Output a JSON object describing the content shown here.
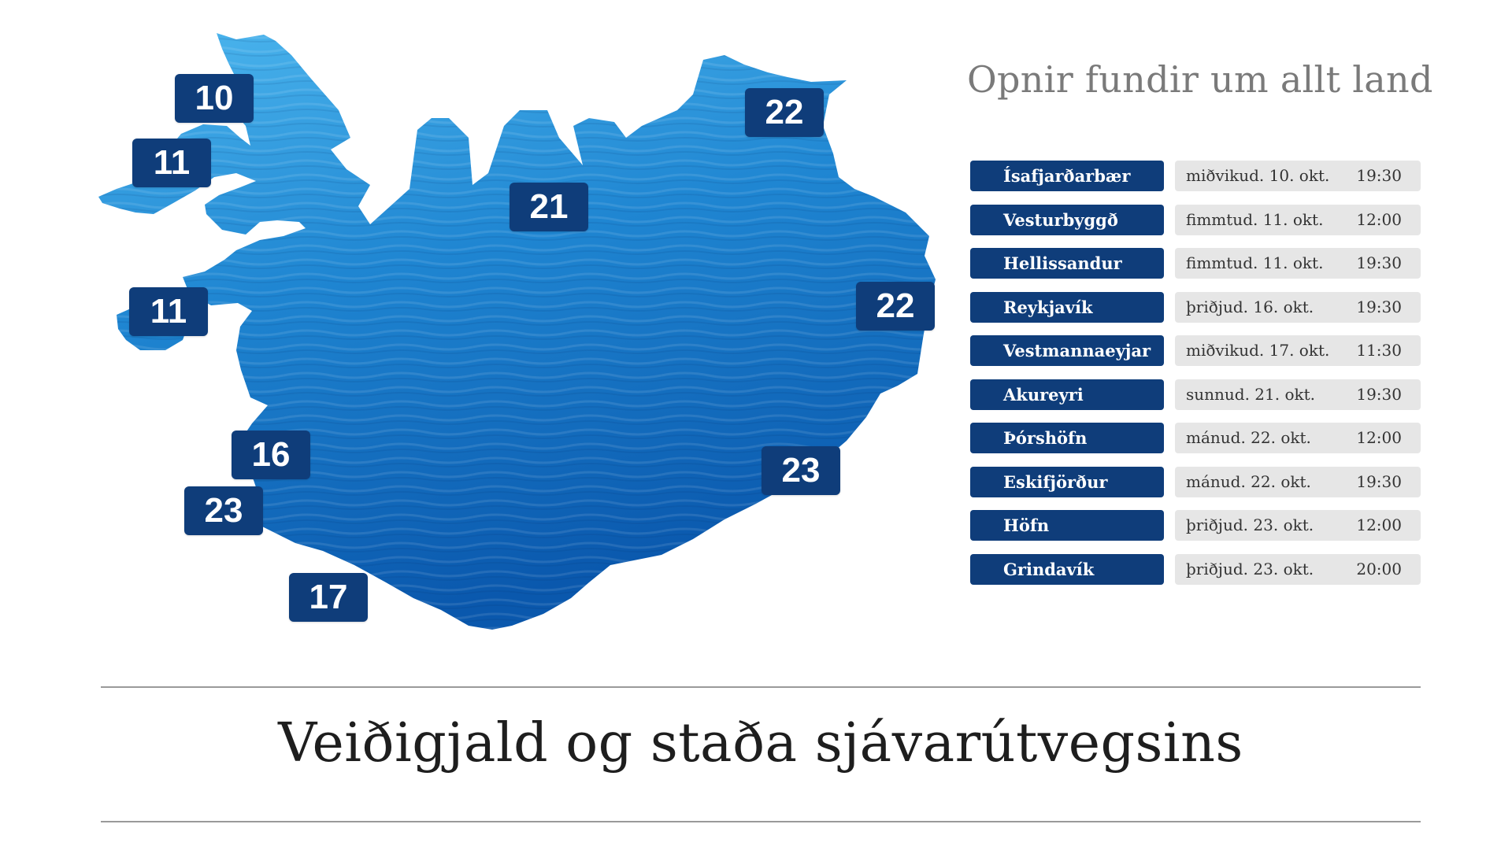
{
  "heading": "Opnir fundir um allt land",
  "title": "Veiðigjald og staða sjávarútvegsins",
  "colors": {
    "badge": "#0f3d7a",
    "map_light": "#35a3e3",
    "map_dark": "#0a63b8",
    "date_bg": "#e6e6e6",
    "rule": "#9a9a9a"
  },
  "map": {
    "badges": [
      "10",
      "11",
      "11",
      "16",
      "23",
      "17",
      "21",
      "22",
      "22",
      "23"
    ]
  },
  "schedule": [
    {
      "place": "Ísafjarðarbær",
      "date": "miðvikud. 10. okt.",
      "time": "19:30"
    },
    {
      "place": "Vesturbyggð",
      "date": "fimmtud. 11. okt.",
      "time": "12:00"
    },
    {
      "place": "Hellissandur",
      "date": "fimmtud. 11. okt.",
      "time": "19:30"
    },
    {
      "place": "Reykjavík",
      "date": "þriðjud. 16. okt.",
      "time": "19:30"
    },
    {
      "place": "Vestmannaeyjar",
      "date": "miðvikud. 17. okt.",
      "time": "11:30"
    },
    {
      "place": "Akureyri",
      "date": "sunnud. 21. okt.",
      "time": "19:30"
    },
    {
      "place": "Þórshöfn",
      "date": "mánud. 22. okt.",
      "time": "12:00"
    },
    {
      "place": "Eskifjörður",
      "date": "mánud. 22. okt.",
      "time": "19:30"
    },
    {
      "place": "Höfn",
      "date": "þriðjud. 23. okt.",
      "time": "12:00"
    },
    {
      "place": "Grindavík",
      "date": "þriðjud. 23. okt.",
      "time": "20:00"
    }
  ]
}
